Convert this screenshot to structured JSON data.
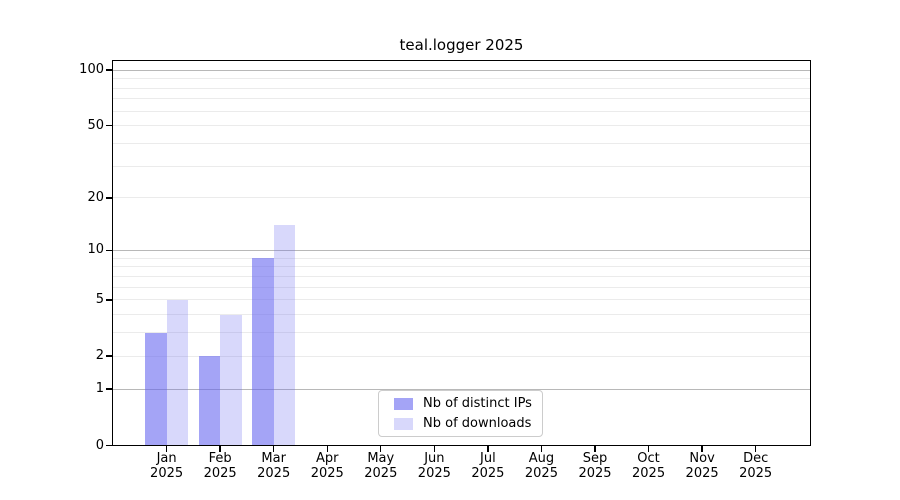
{
  "chart_data": {
    "type": "bar",
    "title": "teal.logger 2025",
    "categories": [
      [
        "Jan",
        "2025"
      ],
      [
        "Feb",
        "2025"
      ],
      [
        "Mar",
        "2025"
      ],
      [
        "Apr",
        "2025"
      ],
      [
        "May",
        "2025"
      ],
      [
        "Jun",
        "2025"
      ],
      [
        "Jul",
        "2025"
      ],
      [
        "Aug",
        "2025"
      ],
      [
        "Sep",
        "2025"
      ],
      [
        "Oct",
        "2025"
      ],
      [
        "Nov",
        "2025"
      ],
      [
        "Dec",
        "2025"
      ]
    ],
    "series": [
      {
        "name": "Nb of distinct IPs",
        "color": "rgba(98,98,240,0.58)",
        "values": [
          3,
          2,
          9,
          0,
          0,
          0,
          0,
          0,
          0,
          0,
          0,
          0
        ]
      },
      {
        "name": "Nb of downloads",
        "color": "rgba(98,98,240,0.25)",
        "values": [
          5,
          4,
          14,
          0,
          0,
          0,
          0,
          0,
          0,
          0,
          0,
          0
        ]
      }
    ],
    "xlabel": "",
    "ylabel": "",
    "y_axis": {
      "scale": "log1p",
      "ylim": [
        0,
        112
      ],
      "tick_values": [
        0,
        1,
        2,
        5,
        10,
        20,
        50,
        100
      ],
      "tick_labels": [
        "0",
        "1",
        "2",
        "5",
        "10",
        "20",
        "50",
        "100"
      ],
      "major_grid_values": [
        1,
        10,
        100
      ],
      "minor_grid_values": [
        2,
        3,
        4,
        5,
        6,
        7,
        8,
        9,
        20,
        30,
        40,
        50,
        60,
        70,
        80,
        90
      ]
    },
    "grid": "on",
    "legend_position": "inside-bottom-center",
    "style": {
      "major_grid_color": "#b8b8b8",
      "minor_grid_color": "#ebebeb",
      "axis_color": "#000000",
      "legend_border_color": "#cccccc",
      "background_color": "#ffffff"
    }
  }
}
